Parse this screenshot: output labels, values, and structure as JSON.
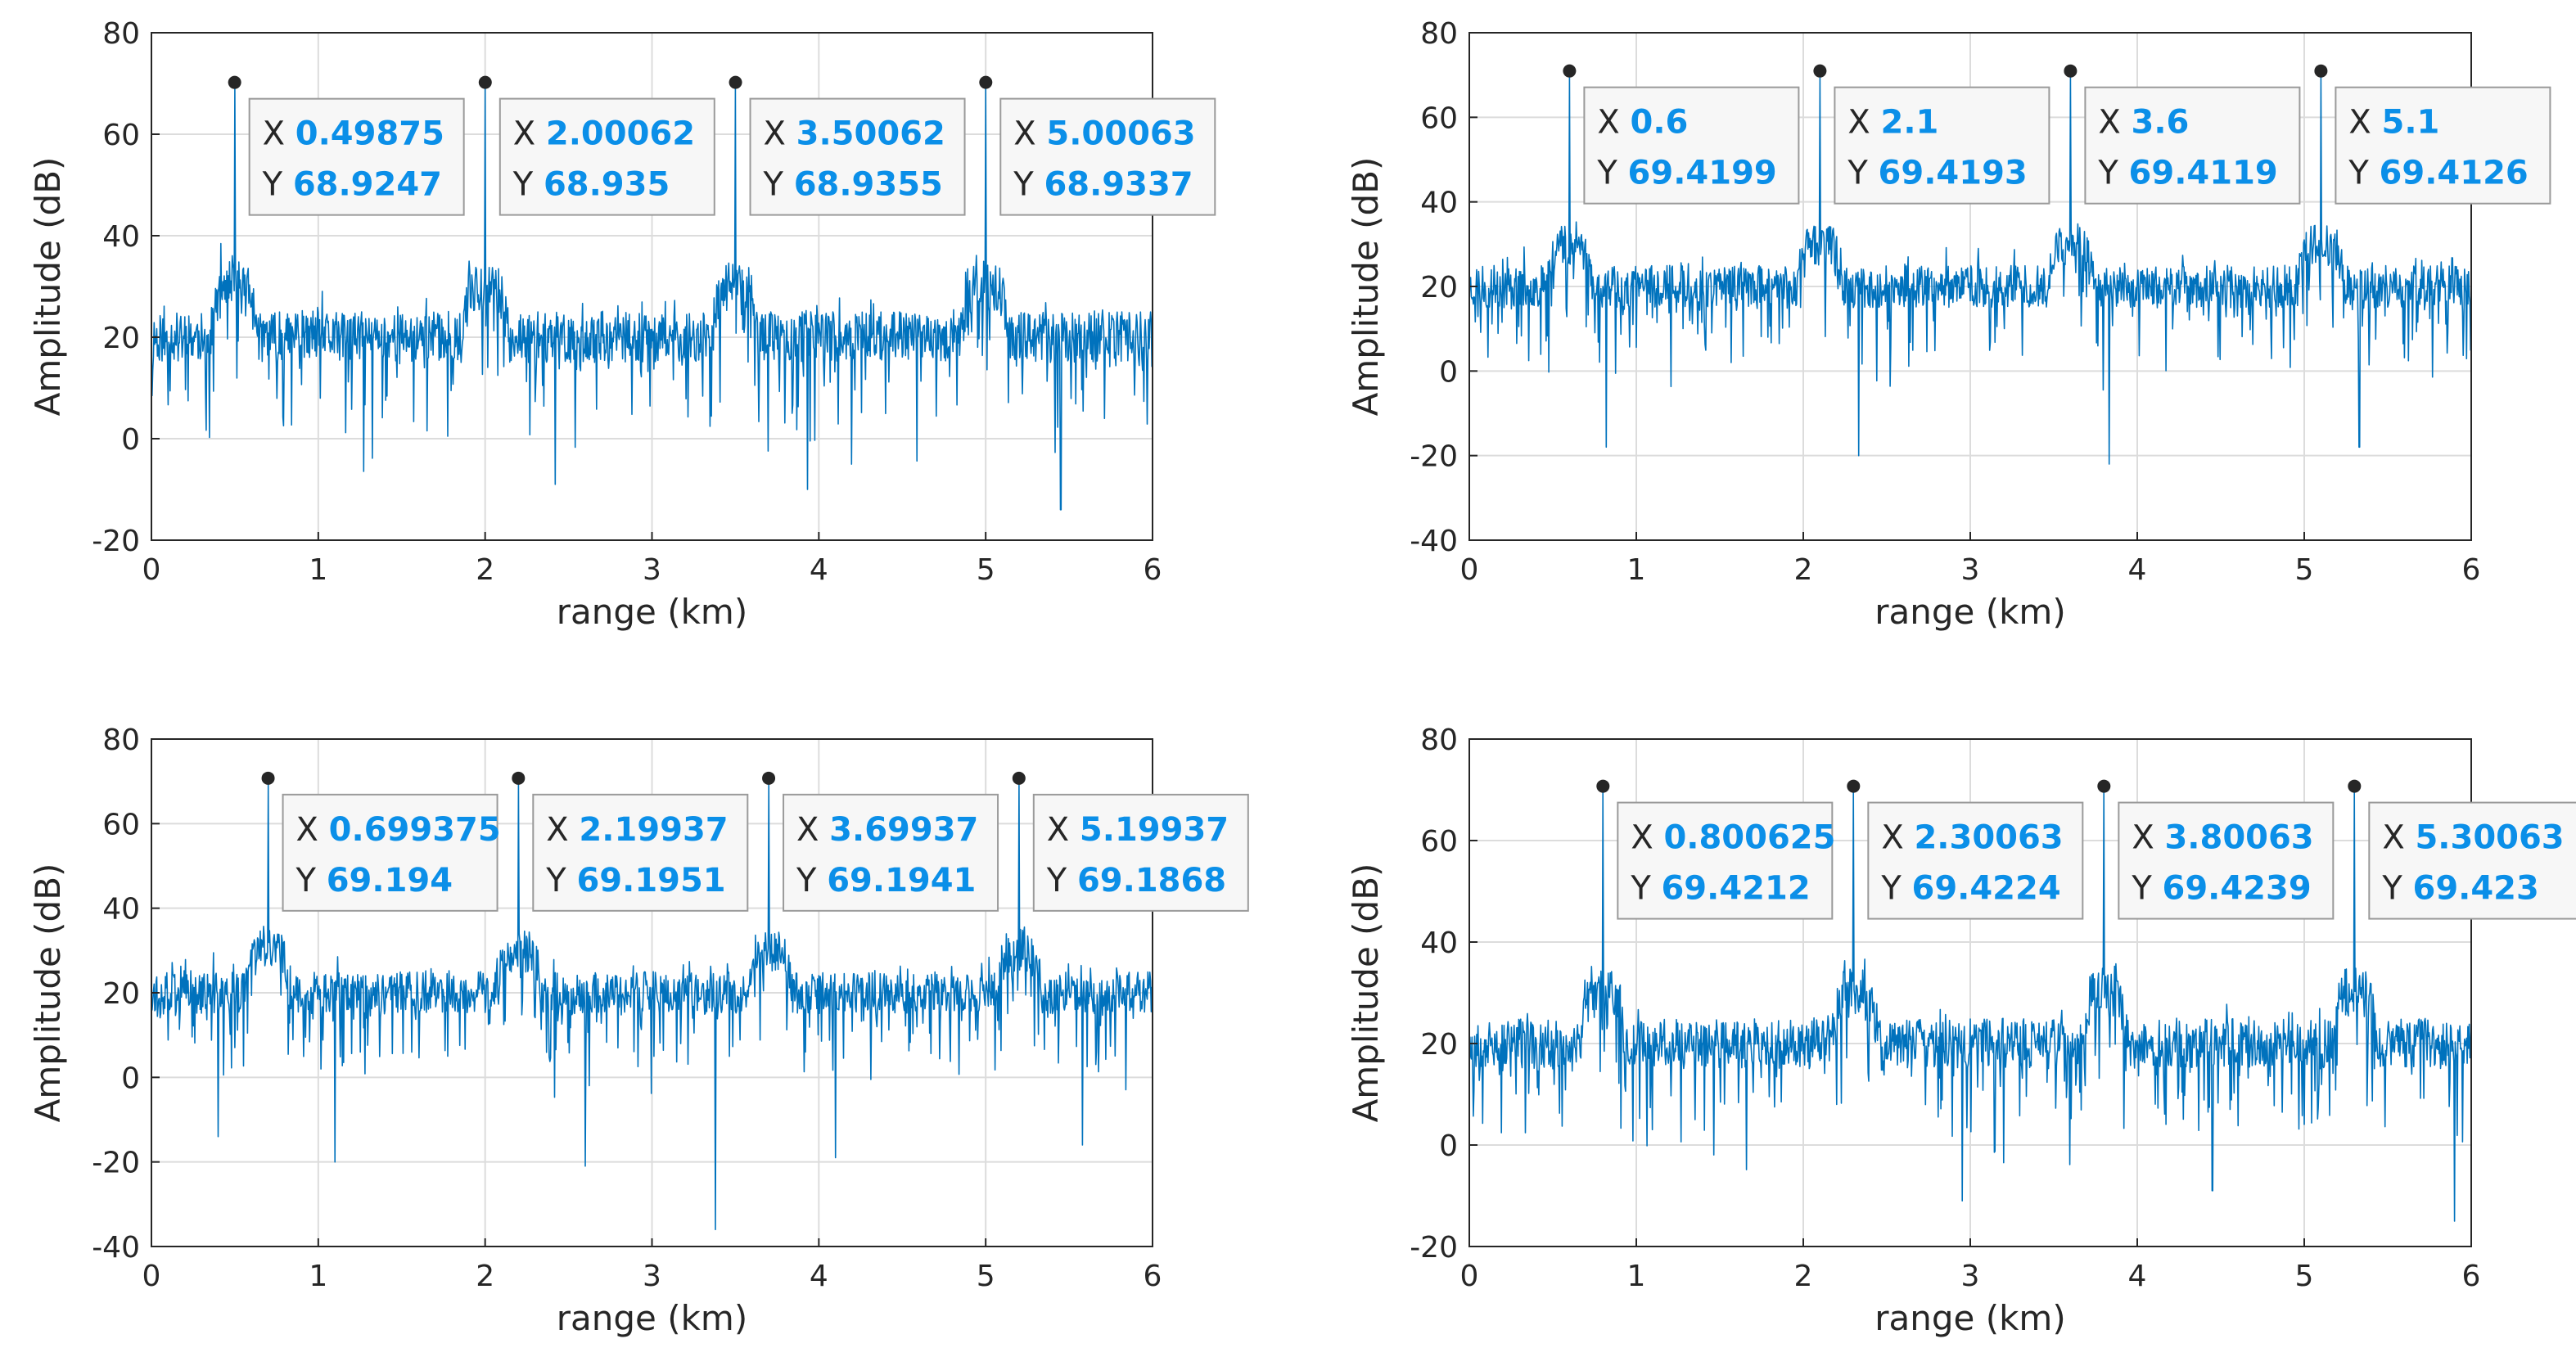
{
  "chart_data": [
    {
      "type": "line",
      "xlabel": "range (km)",
      "ylabel": "Amplitude (dB)",
      "xlim": [
        0,
        6
      ],
      "ylim": [
        -20,
        80
      ],
      "xticks": [
        0,
        1,
        2,
        3,
        4,
        5,
        6
      ],
      "yticks": [
        -20,
        0,
        20,
        40,
        60,
        80
      ],
      "grid": true,
      "series_color": "#0072bd",
      "noise": {
        "baseline_db": 20,
        "hump_db": 30,
        "seed": 11,
        "deep_dips": [
          [
            0.93,
            -8
          ],
          [
            2.42,
            -9
          ],
          [
            3.93,
            -10
          ],
          [
            5.45,
            -14
          ]
        ]
      },
      "peaks": [
        {
          "x": 0.49875,
          "y": 68.9247,
          "x_text": "0.49875",
          "y_text": "68.9247"
        },
        {
          "x": 2.00062,
          "y": 68.935,
          "x_text": "2.00062",
          "y_text": "68.935"
        },
        {
          "x": 3.50062,
          "y": 68.9355,
          "x_text": "3.50062",
          "y_text": "68.9355"
        },
        {
          "x": 5.00063,
          "y": 68.9337,
          "x_text": "5.00063",
          "y_text": "68.9337"
        }
      ]
    },
    {
      "type": "line",
      "xlabel": "range (km)",
      "ylabel": "Amplitude (dB)",
      "xlim": [
        0,
        6
      ],
      "ylim": [
        -40,
        80
      ],
      "xticks": [
        0,
        1,
        2,
        3,
        4,
        5,
        6
      ],
      "yticks": [
        -40,
        -20,
        0,
        20,
        40,
        60,
        80
      ],
      "grid": true,
      "series_color": "#0072bd",
      "noise": {
        "baseline_db": 20,
        "hump_db": 30,
        "seed": 23,
        "deep_dips": [
          [
            0.82,
            -18
          ],
          [
            2.33,
            -20
          ],
          [
            3.83,
            -22
          ],
          [
            5.33,
            -18
          ]
        ]
      },
      "peaks": [
        {
          "x": 0.6,
          "y": 69.4199,
          "x_text": "0.6",
          "y_text": "69.4199"
        },
        {
          "x": 2.1,
          "y": 69.4193,
          "x_text": "2.1",
          "y_text": "69.4193"
        },
        {
          "x": 3.6,
          "y": 69.4119,
          "x_text": "3.6",
          "y_text": "69.4119"
        },
        {
          "x": 5.1,
          "y": 69.4126,
          "x_text": "5.1",
          "y_text": "69.4126"
        }
      ]
    },
    {
      "type": "line",
      "xlabel": "range (km)",
      "ylabel": "Amplitude (dB)",
      "xlim": [
        0,
        6
      ],
      "ylim": [
        -40,
        80
      ],
      "xticks": [
        0,
        1,
        2,
        3,
        4,
        5,
        6
      ],
      "yticks": [
        -40,
        -20,
        0,
        20,
        40,
        60,
        80
      ],
      "grid": true,
      "series_color": "#0072bd",
      "noise": {
        "baseline_db": 20,
        "hump_db": 30,
        "seed": 37,
        "deep_dips": [
          [
            0.4,
            -14
          ],
          [
            1.1,
            -20
          ],
          [
            2.6,
            -21
          ],
          [
            3.38,
            -36
          ],
          [
            4.1,
            -19
          ],
          [
            5.58,
            -16
          ]
        ]
      },
      "peaks": [
        {
          "x": 0.699375,
          "y": 69.194,
          "x_text": "0.699375",
          "y_text": "69.194"
        },
        {
          "x": 2.19937,
          "y": 69.1951,
          "x_text": "2.19937",
          "y_text": "69.1951"
        },
        {
          "x": 3.69937,
          "y": 69.1941,
          "x_text": "3.69937",
          "y_text": "69.1941"
        },
        {
          "x": 5.19937,
          "y": 69.1868,
          "x_text": "5.19937",
          "y_text": "69.1868"
        }
      ]
    },
    {
      "type": "line",
      "xlabel": "range (km)",
      "ylabel": "Amplitude (dB)",
      "xlim": [
        0,
        6
      ],
      "ylim": [
        -20,
        80
      ],
      "xticks": [
        0,
        1,
        2,
        3,
        4,
        5,
        6
      ],
      "yticks": [
        -20,
        0,
        20,
        40,
        60,
        80
      ],
      "grid": true,
      "series_color": "#0072bd",
      "noise": {
        "baseline_db": 20,
        "hump_db": 30,
        "seed": 53,
        "deep_dips": [
          [
            1.33,
            -9
          ],
          [
            2.95,
            -11
          ],
          [
            4.45,
            -9
          ],
          [
            5.9,
            -15
          ]
        ]
      },
      "peaks": [
        {
          "x": 0.800625,
          "y": 69.4212,
          "x_text": "0.800625",
          "y_text": "69.4212"
        },
        {
          "x": 2.30063,
          "y": 69.4224,
          "x_text": "2.30063",
          "y_text": "69.4224"
        },
        {
          "x": 3.80063,
          "y": 69.4239,
          "x_text": "3.80063",
          "y_text": "69.4239"
        },
        {
          "x": 5.30063,
          "y": 69.423,
          "x_text": "5.30063",
          "y_text": "69.423"
        }
      ]
    }
  ],
  "datatip": {
    "x_key": "X",
    "y_key": "Y"
  }
}
